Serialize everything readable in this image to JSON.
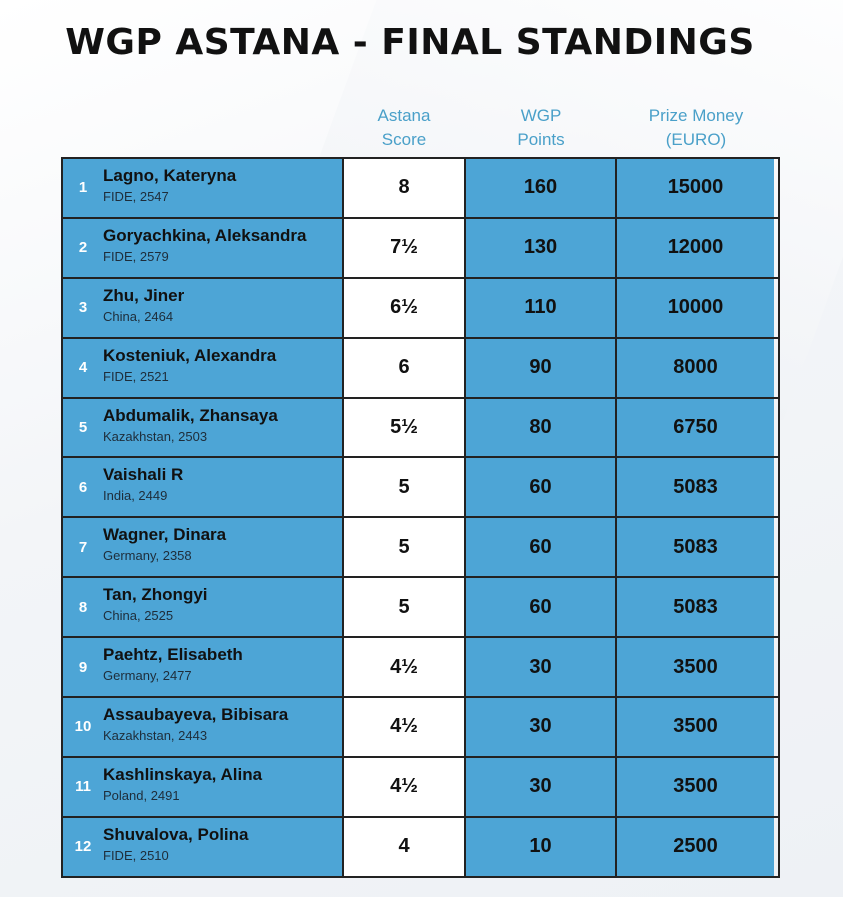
{
  "title": "WGP ASTANA - FINAL STANDINGS",
  "headers": {
    "score": [
      "Astana",
      "Score"
    ],
    "points": [
      "WGP",
      "Points"
    ],
    "prize": [
      "Prize Money",
      "(EURO)"
    ]
  },
  "rows": [
    {
      "rank": "1",
      "name": "Lagno, Kateryna",
      "meta": "FIDE, 2547",
      "score": "8",
      "points": "160",
      "prize": "15000"
    },
    {
      "rank": "2",
      "name": "Goryachkina, Aleksandra",
      "meta": "FIDE, 2579",
      "score": "7½",
      "points": "130",
      "prize": "12000"
    },
    {
      "rank": "3",
      "name": "Zhu, Jiner",
      "meta": "China, 2464",
      "score": "6½",
      "points": "110",
      "prize": "10000"
    },
    {
      "rank": "4",
      "name": "Kosteniuk, Alexandra",
      "meta": "FIDE, 2521",
      "score": "6",
      "points": "90",
      "prize": "8000"
    },
    {
      "rank": "5",
      "name": "Abdumalik, Zhansaya",
      "meta": "Kazakhstan, 2503",
      "score": "5½",
      "points": "80",
      "prize": "6750"
    },
    {
      "rank": "6",
      "name": "Vaishali R",
      "meta": "India, 2449",
      "score": "5",
      "points": "60",
      "prize": "5083"
    },
    {
      "rank": "7",
      "name": "Wagner, Dinara",
      "meta": "Germany, 2358",
      "score": "5",
      "points": "60",
      "prize": "5083"
    },
    {
      "rank": "8",
      "name": "Tan, Zhongyi",
      "meta": "China, 2525",
      "score": "5",
      "points": "60",
      "prize": "5083"
    },
    {
      "rank": "9",
      "name": "Paehtz, Elisabeth",
      "meta": "Germany, 2477",
      "score": "4½",
      "points": "30",
      "prize": "3500"
    },
    {
      "rank": "10",
      "name": "Assaubayeva, Bibisara",
      "meta": "Kazakhstan, 2443",
      "score": "4½",
      "points": "30",
      "prize": "3500"
    },
    {
      "rank": "11",
      "name": "Kashlinskaya, Alina",
      "meta": "Poland, 2491",
      "score": "4½",
      "points": "30",
      "prize": "3500"
    },
    {
      "rank": "12",
      "name": "Shuvalova, Polina",
      "meta": "FIDE, 2510",
      "score": "4",
      "points": "10",
      "prize": "2500"
    }
  ]
}
